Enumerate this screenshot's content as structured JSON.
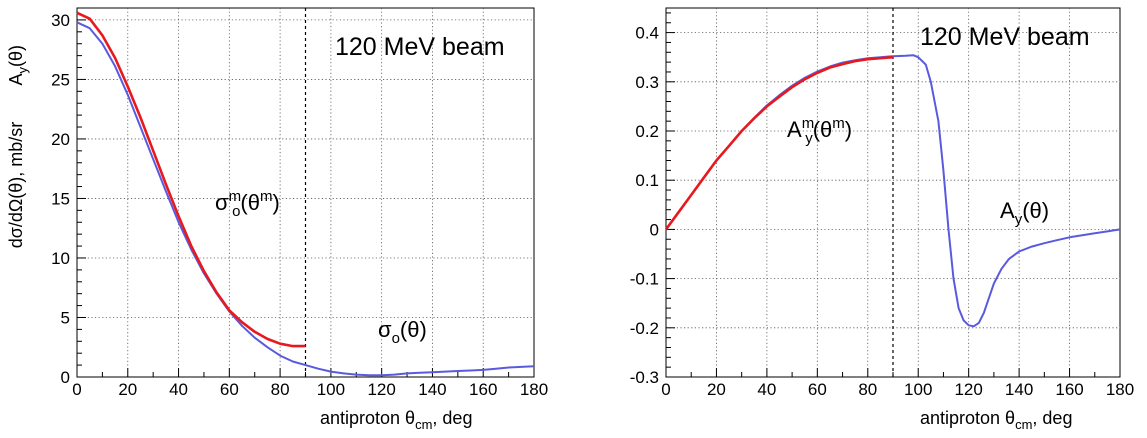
{
  "chart_data": [
    {
      "type": "line",
      "title": "",
      "annotation": "120 MeV beam",
      "xlabel": {
        "main": "antiproton  θ",
        "sub": "cm",
        "tail": ",   deg"
      },
      "ylabel": "dσ/dΩ(θ),  mb/sr",
      "xlim": [
        0,
        180
      ],
      "ylim": [
        0,
        31
      ],
      "xticks": [
        0,
        20,
        40,
        60,
        80,
        100,
        120,
        140,
        160,
        180
      ],
      "yticks": [
        0,
        5,
        10,
        15,
        20,
        25,
        30
      ],
      "grid": true,
      "divider_x": 90,
      "curve_labels": [
        {
          "base": "σ",
          "sub": "o",
          "sup": "m",
          "arg": "(θ",
          "argsup": "m",
          "close": ")"
        },
        {
          "base": "σ",
          "sub": "o",
          "sup": "",
          "arg": "(θ)",
          "argsup": "",
          "close": ""
        }
      ],
      "series": [
        {
          "color": "#e8191e",
          "x": [
            0,
            5,
            10,
            15,
            20,
            25,
            30,
            35,
            40,
            45,
            50,
            55,
            60,
            65,
            70,
            75,
            80,
            85,
            90
          ],
          "y": [
            30.6,
            30.1,
            28.7,
            26.8,
            24.4,
            21.8,
            19.0,
            16.2,
            13.5,
            11.0,
            8.9,
            7.1,
            5.6,
            4.6,
            3.8,
            3.2,
            2.8,
            2.6,
            2.6
          ]
        },
        {
          "color": "#5a5adf",
          "x": [
            0,
            5,
            10,
            15,
            20,
            25,
            30,
            35,
            40,
            45,
            50,
            55,
            60,
            65,
            70,
            75,
            80,
            85,
            90,
            95,
            100,
            105,
            110,
            115,
            120,
            125,
            130,
            135,
            140,
            145,
            150,
            155,
            160,
            165,
            170,
            175,
            180
          ],
          "y": [
            29.8,
            29.3,
            28.0,
            26.1,
            23.7,
            21.0,
            18.3,
            15.6,
            13.0,
            10.7,
            8.7,
            7.0,
            5.5,
            4.3,
            3.3,
            2.5,
            1.8,
            1.3,
            1.0,
            0.7,
            0.45,
            0.3,
            0.2,
            0.15,
            0.15,
            0.2,
            0.3,
            0.35,
            0.4,
            0.45,
            0.5,
            0.55,
            0.6,
            0.7,
            0.8,
            0.85,
            0.9
          ]
        }
      ]
    },
    {
      "type": "line",
      "title": "",
      "annotation": "120 MeV beam",
      "xlabel": {
        "main": "antiproton  θ",
        "sub": "cm",
        "tail": ",   deg"
      },
      "ylabel": {
        "main": "A",
        "sub": "y",
        "tail": "(θ)"
      },
      "xlim": [
        0,
        180
      ],
      "ylim": [
        -0.3,
        0.45
      ],
      "xticks": [
        0,
        20,
        40,
        60,
        80,
        100,
        120,
        140,
        160,
        180
      ],
      "yticks": [
        -0.3,
        -0.2,
        -0.1,
        0,
        0.1,
        0.2,
        0.3,
        0.4
      ],
      "ytick_labels": [
        "-0.3",
        "-0.2",
        "-0.1",
        "0",
        "0.1",
        "0.2",
        "0.3",
        "0.4"
      ],
      "grid": true,
      "divider_x": 90,
      "curve_labels": [
        {
          "base": "A",
          "sub": "y",
          "sup": "m",
          "arg": "(θ",
          "argsup": "m",
          "close": ")"
        },
        {
          "base": "A",
          "sub": "y",
          "sup": "",
          "arg": "(θ)",
          "argsup": "",
          "close": ""
        }
      ],
      "series": [
        {
          "color": "#e8191e",
          "x": [
            0,
            5,
            10,
            15,
            20,
            25,
            30,
            35,
            40,
            45,
            50,
            55,
            60,
            65,
            70,
            75,
            80,
            85,
            90
          ],
          "y": [
            0.0,
            0.035,
            0.07,
            0.105,
            0.14,
            0.17,
            0.2,
            0.226,
            0.25,
            0.27,
            0.289,
            0.305,
            0.318,
            0.329,
            0.336,
            0.342,
            0.346,
            0.348,
            0.35
          ]
        },
        {
          "color": "#5a5adf",
          "x": [
            0,
            5,
            10,
            15,
            20,
            25,
            30,
            35,
            40,
            45,
            50,
            55,
            60,
            65,
            70,
            75,
            80,
            85,
            90,
            95,
            98,
            100,
            103,
            105,
            108,
            110,
            112,
            114,
            116,
            118,
            120,
            122,
            124,
            126,
            128,
            130,
            133,
            136,
            140,
            145,
            150,
            155,
            160,
            165,
            170,
            175,
            180
          ],
          "y": [
            0.0,
            0.035,
            0.07,
            0.105,
            0.14,
            0.17,
            0.2,
            0.227,
            0.252,
            0.273,
            0.292,
            0.308,
            0.321,
            0.331,
            0.339,
            0.344,
            0.348,
            0.35,
            0.352,
            0.353,
            0.354,
            0.35,
            0.335,
            0.3,
            0.22,
            0.12,
            0.0,
            -0.1,
            -0.16,
            -0.185,
            -0.195,
            -0.197,
            -0.19,
            -0.17,
            -0.14,
            -0.11,
            -0.08,
            -0.06,
            -0.045,
            -0.035,
            -0.028,
            -0.022,
            -0.016,
            -0.012,
            -0.008,
            -0.004,
            0.0
          ]
        }
      ]
    }
  ]
}
